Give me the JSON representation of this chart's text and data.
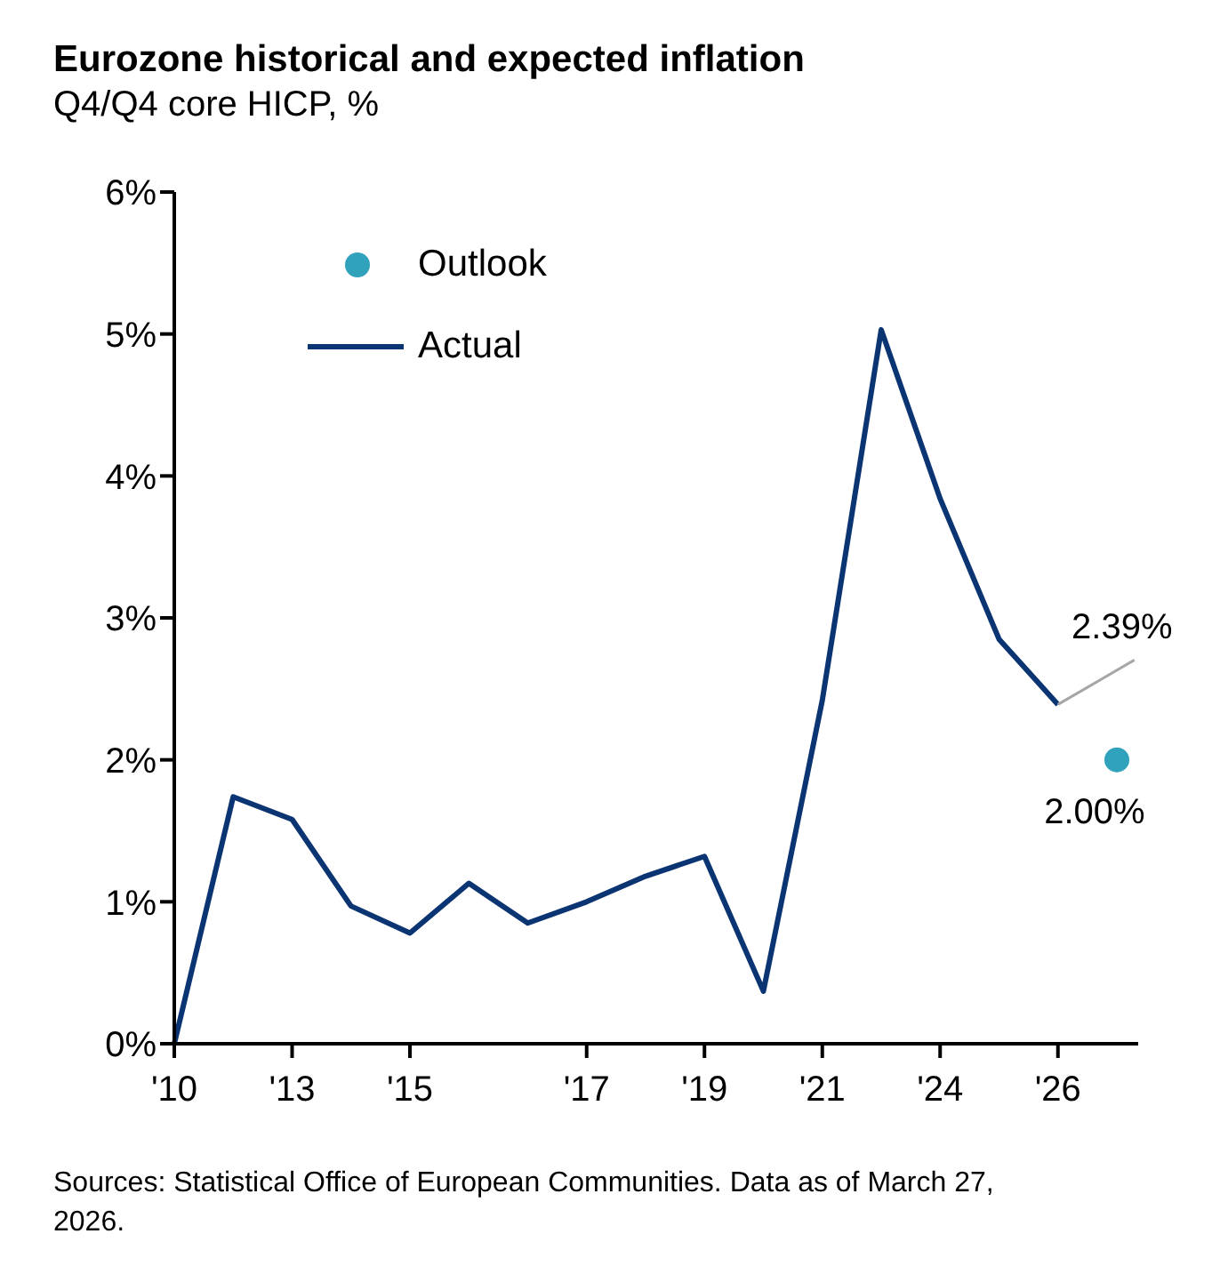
{
  "chart_data": {
    "type": "line",
    "title": "Eurozone historical and expected inflation",
    "subtitle": "Q4/Q4 core HICP, %",
    "categories": [
      "'10",
      null,
      "'13",
      null,
      "'15",
      null,
      null,
      "'17",
      null,
      "'19",
      null,
      "'21",
      null,
      "'24",
      null,
      "'26",
      null
    ],
    "series": [
      {
        "name": "Outlook",
        "type": "scatter",
        "marker": "circle",
        "color": "#31a2bb",
        "values": [
          null,
          null,
          null,
          null,
          null,
          null,
          null,
          null,
          null,
          null,
          null,
          null,
          null,
          null,
          null,
          null,
          2.0
        ],
        "value_labels": [
          null,
          null,
          null,
          null,
          null,
          null,
          null,
          null,
          null,
          null,
          null,
          null,
          null,
          null,
          null,
          null,
          "2.00%"
        ]
      },
      {
        "name": "Actual",
        "marker": "none",
        "color": "#0b3473",
        "values": [
          0,
          1.74,
          1.58,
          0.97,
          0.78,
          1.13,
          0.85,
          1.0,
          1.18,
          1.32,
          0.37,
          2.42,
          5.03,
          3.84,
          2.85,
          2.39,
          null
        ],
        "value_labels": [
          null,
          null,
          null,
          null,
          null,
          null,
          null,
          null,
          null,
          null,
          null,
          null,
          null,
          null,
          null,
          "2.39%",
          null
        ]
      }
    ],
    "ylim": [
      0,
      6
    ],
    "yticks": [
      {
        "value": 0,
        "label": "0%"
      },
      {
        "value": 1,
        "label": "1%"
      },
      {
        "value": 2,
        "label": "2%"
      },
      {
        "value": 3,
        "label": "3%"
      },
      {
        "value": 4,
        "label": "4%"
      },
      {
        "value": 5,
        "label": "5%"
      },
      {
        "value": 6,
        "label": "6%"
      }
    ],
    "grid": false,
    "legend": "top left",
    "line_style": "solid",
    "annotations": [
      "Sources: Statistical Office of European Communities. Data as of March 27, 2026."
    ]
  }
}
